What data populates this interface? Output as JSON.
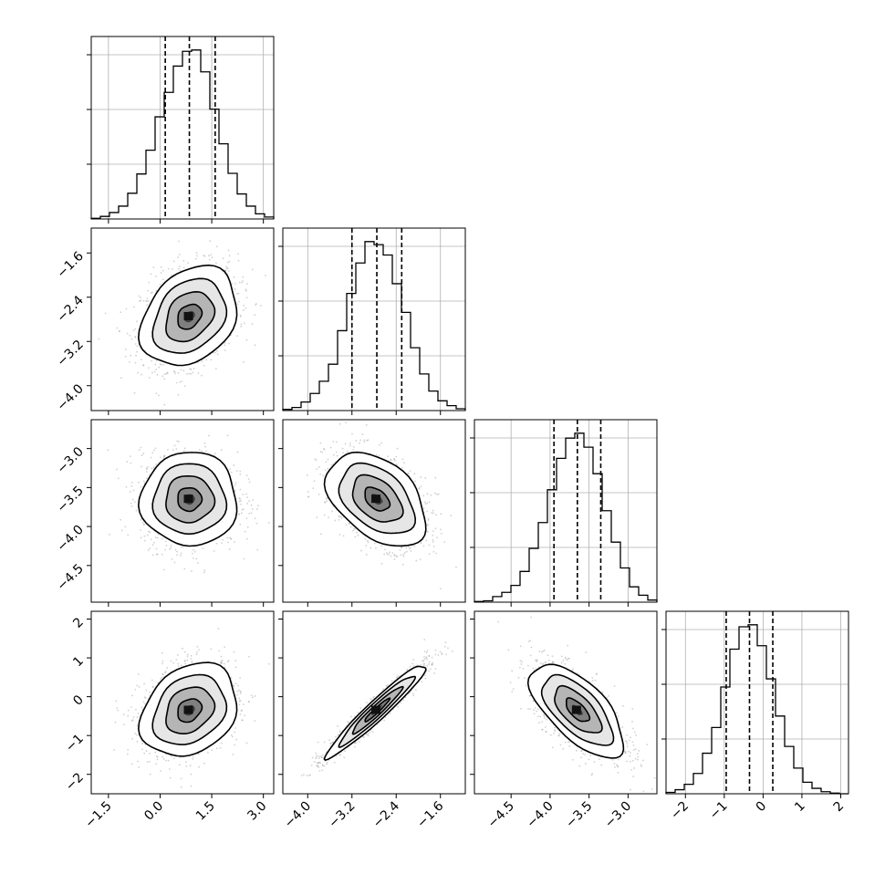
{
  "chart_data": {
    "type": "corner",
    "title": "",
    "parameters": [
      {
        "index": 0,
        "range": [
          -2.0,
          3.3
        ],
        "ticks": [
          -1.5,
          0.0,
          1.5,
          3.0
        ],
        "tick_labels": [
          "−1.5",
          "0.0",
          "1.5",
          "3.0"
        ],
        "median": 0.85,
        "q16": 0.15,
        "q84": 1.6,
        "sigma": 0.7
      },
      {
        "index": 1,
        "range": [
          -4.45,
          -1.15
        ],
        "ticks": [
          -4.0,
          -3.2,
          -2.4,
          -1.6
        ],
        "tick_labels": [
          "−4.0",
          "−3.2",
          "−2.4",
          "−1.6"
        ],
        "median": -2.75,
        "q16": -3.2,
        "q84": -2.3,
        "sigma": 0.45
      },
      {
        "index": 2,
        "range": [
          -4.97,
          -2.63
        ],
        "ticks": [
          -4.5,
          -4.0,
          -3.5,
          -3.0
        ],
        "tick_labels": [
          "−4.5",
          "−4.0",
          "−3.5",
          "−3.0"
        ],
        "median": -3.65,
        "q16": -3.95,
        "q84": -3.35,
        "sigma": 0.3
      },
      {
        "index": 3,
        "range": [
          -2.5,
          2.2
        ],
        "ticks": [
          -2,
          -1,
          0,
          1,
          2
        ],
        "tick_labels": [
          "−2",
          "−1",
          "0",
          "1",
          "2"
        ],
        "median": -0.35,
        "q16": -0.95,
        "q84": 0.25,
        "sigma": 0.6
      }
    ],
    "histograms": [
      {
        "param": 0,
        "bin_edges": [
          -2.0,
          -1.735,
          -1.47,
          -1.205,
          -0.94,
          -0.675,
          -0.41,
          -0.145,
          0.12,
          0.385,
          0.65,
          0.915,
          1.18,
          1.445,
          1.71,
          1.975,
          2.24,
          2.505,
          2.77,
          3.035,
          3.3
        ],
        "counts": [
          1,
          4,
          10,
          20,
          40,
          70,
          107,
          159,
          197,
          238,
          261,
          263,
          229,
          171,
          117,
          71,
          39,
          20,
          8,
          3
        ]
      },
      {
        "param": 1,
        "bin_edges": [
          -4.45,
          -4.285,
          -4.12,
          -3.955,
          -3.79,
          -3.625,
          -3.46,
          -3.295,
          -3.13,
          -2.965,
          -2.8,
          -2.635,
          -2.47,
          -2.305,
          -2.14,
          -1.975,
          -1.81,
          -1.645,
          -1.48,
          -1.315,
          -1.15
        ],
        "counts": [
          2,
          5,
          14,
          28,
          48,
          76,
          131,
          192,
          242,
          277,
          272,
          255,
          208,
          161,
          103,
          60,
          32,
          16,
          8,
          3
        ]
      },
      {
        "param": 2,
        "bin_edges": [
          -4.97,
          -4.853,
          -4.736,
          -4.619,
          -4.502,
          -4.385,
          -4.268,
          -4.151,
          -4.034,
          -3.917,
          -3.8,
          -3.683,
          -3.566,
          -3.449,
          -3.332,
          -3.215,
          -3.098,
          -2.981,
          -2.864,
          -2.747,
          -2.63
        ],
        "counts": [
          1,
          2,
          8,
          14,
          24,
          44,
          77,
          114,
          161,
          206,
          235,
          242,
          222,
          184,
          131,
          86,
          49,
          22,
          10,
          3
        ]
      },
      {
        "param": 3,
        "bin_edges": [
          -2.5,
          -2.265,
          -2.03,
          -1.795,
          -1.56,
          -1.325,
          -1.09,
          -0.855,
          -0.62,
          -0.385,
          -0.15,
          0.085,
          0.32,
          0.555,
          0.79,
          1.025,
          1.26,
          1.495,
          1.73,
          1.965,
          2.2
        ],
        "counts": [
          2,
          6,
          14,
          30,
          60,
          98,
          158,
          214,
          247,
          250,
          219,
          170,
          115,
          70,
          38,
          17,
          8,
          3,
          1,
          0
        ]
      }
    ],
    "pairs": [
      {
        "x_param": 0,
        "y_param": 1,
        "rho": 0.28
      },
      {
        "x_param": 0,
        "y_param": 2,
        "rho": 0.0
      },
      {
        "x_param": 1,
        "y_param": 2,
        "rho": -0.42
      },
      {
        "x_param": 0,
        "y_param": 3,
        "rho": 0.25
      },
      {
        "x_param": 1,
        "y_param": 3,
        "rho": 0.96
      },
      {
        "x_param": 2,
        "y_param": 3,
        "rho": -0.65
      }
    ],
    "contour_levels_sigma": [
      0.5,
      1.0,
      1.5,
      2.0
    ],
    "grid": true
  }
}
